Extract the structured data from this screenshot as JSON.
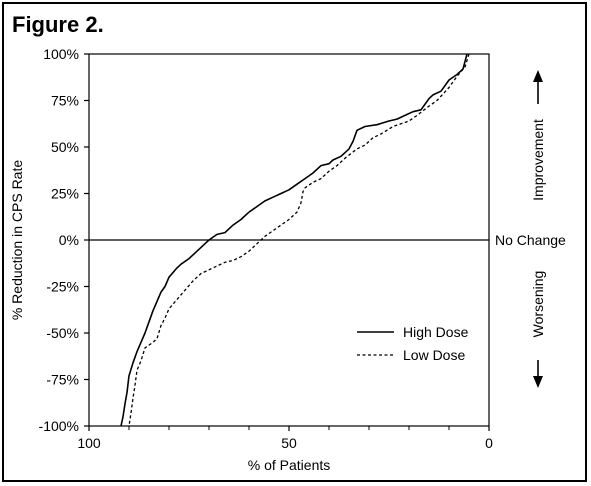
{
  "figure_label": "Figure 2.",
  "chart_data": {
    "type": "line",
    "xlabel": "% of Patients",
    "ylabel": "% Reduction in CPS Rate",
    "xlim": [
      100,
      0
    ],
    "ylim": [
      -100,
      100
    ],
    "x_ticks": [
      100,
      50,
      0
    ],
    "x_tick_labels": [
      "100",
      "50",
      "0"
    ],
    "y_ticks": [
      100,
      75,
      50,
      25,
      0,
      -25,
      -50,
      -75,
      -100
    ],
    "y_tick_labels": [
      "100%",
      "75%",
      "50%",
      "25%",
      "0%",
      "-25%",
      "-50%",
      "-75%",
      "-100%"
    ],
    "reference_line": {
      "y": 0,
      "label": "No Change"
    },
    "side_annotations": {
      "up": "Improvement",
      "down": "Worsening"
    },
    "legend_position": "lower-right",
    "series": [
      {
        "name": "High Dose",
        "style": "solid",
        "points": [
          [
            5.5,
            100
          ],
          [
            6.5,
            92
          ],
          [
            8,
            89
          ],
          [
            10,
            86
          ],
          [
            12,
            80
          ],
          [
            14,
            78
          ],
          [
            15,
            76
          ],
          [
            17,
            70
          ],
          [
            19,
            69
          ],
          [
            21,
            67
          ],
          [
            23,
            65
          ],
          [
            25,
            64
          ],
          [
            28,
            62
          ],
          [
            31,
            61
          ],
          [
            33,
            59
          ],
          [
            34,
            53
          ],
          [
            35,
            49
          ],
          [
            37,
            45
          ],
          [
            39,
            43
          ],
          [
            40,
            41
          ],
          [
            42,
            40
          ],
          [
            44,
            36
          ],
          [
            46,
            33
          ],
          [
            48,
            30
          ],
          [
            50,
            27
          ],
          [
            52,
            25
          ],
          [
            54,
            23
          ],
          [
            56,
            21
          ],
          [
            58,
            18
          ],
          [
            60,
            15
          ],
          [
            62,
            11
          ],
          [
            64,
            8
          ],
          [
            65,
            6
          ],
          [
            66,
            4
          ],
          [
            68,
            3
          ],
          [
            70,
            0
          ],
          [
            71,
            -2
          ],
          [
            73,
            -6
          ],
          [
            75,
            -10
          ],
          [
            77,
            -13
          ],
          [
            78,
            -15
          ],
          [
            80,
            -20
          ],
          [
            81,
            -25
          ],
          [
            82,
            -28
          ],
          [
            83,
            -33
          ],
          [
            84,
            -38
          ],
          [
            85,
            -44
          ],
          [
            86,
            -50
          ],
          [
            87,
            -55
          ],
          [
            88,
            -60
          ],
          [
            89,
            -66
          ],
          [
            90,
            -73
          ],
          [
            90.5,
            -82
          ],
          [
            91,
            -88
          ],
          [
            91.5,
            -95
          ],
          [
            92,
            -100
          ]
        ]
      },
      {
        "name": "Low Dose",
        "style": "dashed",
        "points": [
          [
            5,
            100
          ],
          [
            6,
            93
          ],
          [
            8,
            88
          ],
          [
            10,
            82
          ],
          [
            13,
            75
          ],
          [
            15,
            72
          ],
          [
            18,
            67
          ],
          [
            20,
            64
          ],
          [
            24,
            61
          ],
          [
            27,
            57
          ],
          [
            29,
            55
          ],
          [
            31,
            51
          ],
          [
            33,
            49
          ],
          [
            36,
            44
          ],
          [
            38,
            40
          ],
          [
            40,
            37
          ],
          [
            42,
            33
          ],
          [
            44,
            31
          ],
          [
            46,
            28
          ],
          [
            46.5,
            26
          ],
          [
            47,
            20
          ],
          [
            48,
            15
          ],
          [
            50,
            11
          ],
          [
            52,
            8
          ],
          [
            54,
            5
          ],
          [
            56,
            2
          ],
          [
            57,
            0
          ],
          [
            58,
            -2
          ],
          [
            60,
            -6
          ],
          [
            62,
            -9
          ],
          [
            64,
            -11
          ],
          [
            66,
            -12
          ],
          [
            68,
            -14
          ],
          [
            70,
            -16
          ],
          [
            72,
            -18
          ],
          [
            74,
            -22
          ],
          [
            76,
            -27
          ],
          [
            78,
            -32
          ],
          [
            80,
            -37
          ],
          [
            81,
            -42
          ],
          [
            82,
            -46
          ],
          [
            83,
            -53
          ],
          [
            84,
            -55
          ],
          [
            86,
            -58
          ],
          [
            87,
            -65
          ],
          [
            88,
            -70
          ],
          [
            88.5,
            -78
          ],
          [
            89,
            -85
          ],
          [
            89.5,
            -93
          ],
          [
            90,
            -100
          ]
        ]
      }
    ]
  }
}
